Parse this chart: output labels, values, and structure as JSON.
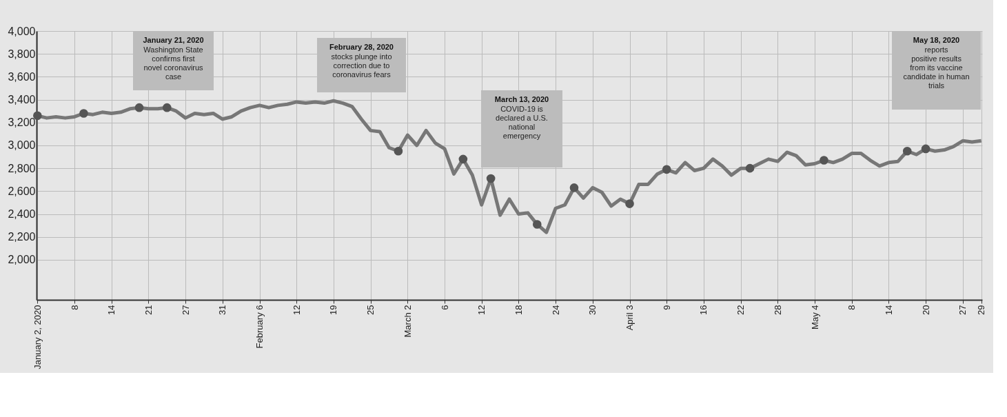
{
  "chart_data": {
    "type": "line",
    "categories": [
      "January 2, 2020",
      null,
      null,
      null,
      "8",
      null,
      null,
      null,
      "14",
      null,
      null,
      null,
      "21",
      null,
      null,
      null,
      "27",
      null,
      null,
      null,
      "31",
      null,
      null,
      null,
      "February 6",
      null,
      null,
      null,
      "12",
      null,
      null,
      null,
      "19",
      null,
      null,
      null,
      "25",
      null,
      null,
      null,
      "March 2",
      null,
      null,
      null,
      "6",
      null,
      null,
      null,
      "12",
      null,
      null,
      null,
      "18",
      null,
      null,
      null,
      "24",
      null,
      null,
      null,
      "30",
      null,
      null,
      null,
      "April 3",
      null,
      null,
      null,
      "9",
      null,
      null,
      null,
      "16",
      null,
      null,
      null,
      "22",
      null,
      null,
      null,
      "28",
      null,
      null,
      null,
      "May 4",
      null,
      null,
      null,
      "8",
      null,
      null,
      null,
      "14",
      null,
      null,
      null,
      "20",
      null,
      null,
      null,
      "27",
      null,
      "29"
    ],
    "series": [
      {
        "color": "#777777",
        "values": [
          3260,
          3240,
          3250,
          3240,
          3250,
          3280,
          3270,
          3290,
          3280,
          3290,
          3320,
          3330,
          3320,
          3320,
          3330,
          3300,
          3240,
          3280,
          3270,
          3280,
          3230,
          3250,
          3300,
          3330,
          3350,
          3330,
          3350,
          3360,
          3380,
          3370,
          3380,
          3370,
          3390,
          3370,
          3340,
          3230,
          3130,
          3120,
          2980,
          2950,
          3090,
          3000,
          3130,
          3020,
          2970,
          2750,
          2880,
          2740,
          2480,
          2710,
          2390,
          2530,
          2400,
          2410,
          2310,
          2240,
          2450,
          2480,
          2630,
          2540,
          2630,
          2590,
          2470,
          2530,
          2490,
          2660,
          2660,
          2750,
          2790,
          2760,
          2850,
          2780,
          2800,
          2880,
          2820,
          2740,
          2800,
          2800,
          2840,
          2880,
          2860,
          2940,
          2910,
          2830,
          2840,
          2870,
          2850,
          2880,
          2930,
          2930,
          2870,
          2820,
          2850,
          2860,
          2950,
          2920,
          2970,
          2950,
          2960,
          2990,
          3040,
          3030,
          3040
        ]
      },
      {
        "type": "scatter",
        "marker": "circle",
        "color": "#555555",
        "values": [
          3260,
          null,
          null,
          null,
          null,
          3280,
          null,
          null,
          null,
          null,
          null,
          3330,
          null,
          null,
          3330,
          null,
          null,
          null,
          null,
          null,
          null,
          null,
          null,
          null,
          null,
          null,
          null,
          null,
          null,
          null,
          null,
          null,
          null,
          null,
          null,
          null,
          null,
          null,
          null,
          2950,
          null,
          null,
          null,
          null,
          null,
          null,
          2880,
          null,
          null,
          2710,
          null,
          null,
          null,
          null,
          2310,
          null,
          null,
          null,
          2630,
          null,
          null,
          null,
          null,
          null,
          2490,
          null,
          null,
          null,
          2790,
          null,
          null,
          null,
          null,
          null,
          null,
          null,
          null,
          2800,
          null,
          null,
          null,
          null,
          null,
          null,
          null,
          2870,
          null,
          null,
          null,
          null,
          null,
          null,
          null,
          null,
          2950,
          null,
          2970,
          null,
          null,
          null,
          null,
          null,
          null
        ]
      }
    ],
    "ylim": [
      1650,
      4000
    ],
    "yticks": [
      {
        "value": 2000,
        "label": "2,000"
      },
      {
        "value": 2200,
        "label": "2,200"
      },
      {
        "value": 2400,
        "label": "2,400"
      },
      {
        "value": 2600,
        "label": "2,600"
      },
      {
        "value": 2800,
        "label": "2,800"
      },
      {
        "value": 3000,
        "label": "3,000"
      },
      {
        "value": 3200,
        "label": "3,200"
      },
      {
        "value": 3400,
        "label": "3,400"
      },
      {
        "value": 3600,
        "label": "3,600"
      },
      {
        "value": 3800,
        "label": "3,800"
      },
      {
        "value": 4000,
        "label": "4,000"
      }
    ],
    "grid": true,
    "legend": false,
    "marker": "none",
    "line_style": "solid",
    "annotations": [
      "January 21, 2020\nWashington State\nconfirms first\nnovel coronavirus\ncase",
      "February 28, 2020\nstocks plunge into\ncorrection due to\ncoronavirus fears",
      "March 13, 2020\nCOVID-19 is\ndeclared a U.S.\nnational\nemergency",
      "May 18, 2020\nreports\npositive results\nfrom its vaccine\ncandidate in human\ntrials"
    ]
  }
}
